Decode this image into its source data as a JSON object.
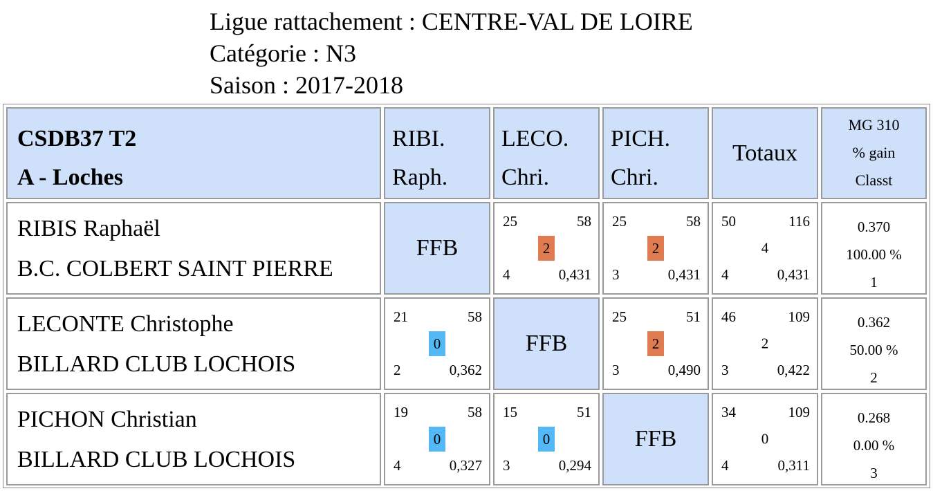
{
  "header": {
    "ligue": "Ligue rattachement : CENTRE-VAL DE LOIRE",
    "categorie": "Catégorie : N3",
    "saison": "Saison : 2017-2018"
  },
  "table": {
    "team_line1": "CSDB37 T2",
    "team_line2": "A - Loches",
    "columns": [
      {
        "line1": "RIBI.",
        "line2": "Raph."
      },
      {
        "line1": "LECO.",
        "line2": "Chri."
      },
      {
        "line1": "PICH.",
        "line2": "Chri."
      }
    ],
    "totaux": "Totaux",
    "mg_header": [
      "MG 310",
      "% gain",
      "Classt"
    ],
    "ffb": "FFB",
    "rows": [
      {
        "name": "RIBIS Raphaël",
        "club": "B.C. COLBERT SAINT PIERRE",
        "matches": [
          null,
          {
            "pts_scored": "25",
            "distance": "58",
            "points": "2",
            "result": "win",
            "innings": "4",
            "avg": "0,431"
          },
          {
            "pts_scored": "25",
            "distance": "58",
            "points": "2",
            "result": "win",
            "innings": "3",
            "avg": "0,431"
          }
        ],
        "total": {
          "pts_scored": "50",
          "distance": "116",
          "points": "4",
          "innings": "4",
          "avg": "0,431"
        },
        "stats": {
          "mg": "0.370",
          "gain": "100.00 %",
          "rank": "1"
        }
      },
      {
        "name": "LECONTE Christophe",
        "club": "BILLARD CLUB LOCHOIS",
        "matches": [
          {
            "pts_scored": "21",
            "distance": "58",
            "points": "0",
            "result": "loss",
            "innings": "2",
            "avg": "0,362"
          },
          null,
          {
            "pts_scored": "25",
            "distance": "51",
            "points": "2",
            "result": "win",
            "innings": "3",
            "avg": "0,490"
          }
        ],
        "total": {
          "pts_scored": "46",
          "distance": "109",
          "points": "2",
          "innings": "3",
          "avg": "0,422"
        },
        "stats": {
          "mg": "0.362",
          "gain": "50.00 %",
          "rank": "2"
        }
      },
      {
        "name": "PICHON Christian",
        "club": "BILLARD CLUB LOCHOIS",
        "matches": [
          {
            "pts_scored": "19",
            "distance": "58",
            "points": "0",
            "result": "loss",
            "innings": "4",
            "avg": "0,327"
          },
          {
            "pts_scored": "15",
            "distance": "51",
            "points": "0",
            "result": "loss",
            "innings": "3",
            "avg": "0,294"
          },
          null
        ],
        "total": {
          "pts_scored": "34",
          "distance": "109",
          "points": "0",
          "innings": "4",
          "avg": "0,311"
        },
        "stats": {
          "mg": "0.268",
          "gain": "0.00 %",
          "rank": "3"
        }
      }
    ]
  },
  "colors": {
    "header_bg": "#cfe0fa",
    "win": "#e07a50",
    "loss": "#54b8f6"
  }
}
